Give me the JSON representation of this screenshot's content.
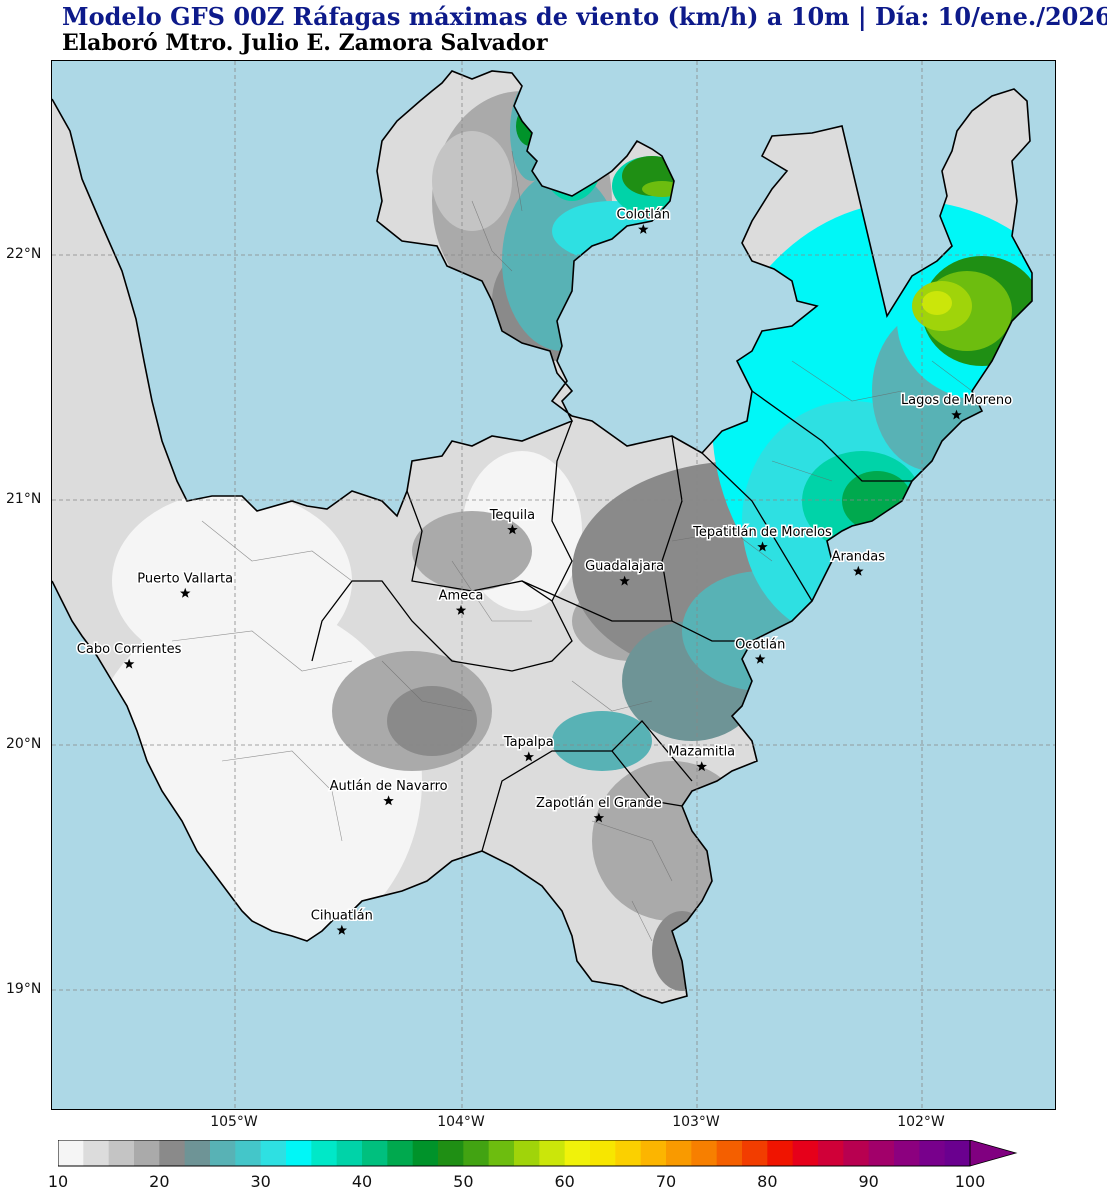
{
  "header": {
    "title": "Modelo GFS 00Z Ráfagas máximas de viento (km/h) a 10m | Día: 10/ene./2026",
    "author": "Elaboró Mtro. Julio E. Zamora Salvador"
  },
  "map": {
    "projection": "PlateCarree",
    "lon_range": [
      -105.8,
      -101.5
    ],
    "lat_range": [
      18.5,
      22.8
    ],
    "gridlines": true,
    "ocean_color": "#add8e6",
    "latitude_labels": [
      "22°N",
      "21°N",
      "20°N",
      "19°N"
    ],
    "longitude_labels": [
      "105°W",
      "104°W",
      "103°W",
      "102°W"
    ],
    "cities": [
      {
        "name": "Colotlán",
        "lon": -103.27,
        "lat": 22.11
      },
      {
        "name": "Lagos de Moreno",
        "lon": -101.93,
        "lat": 21.35
      },
      {
        "name": "Tequila",
        "lon": -103.83,
        "lat": 20.88
      },
      {
        "name": "Tepatitlán de Morelos",
        "lon": -102.76,
        "lat": 20.81
      },
      {
        "name": "Arandas",
        "lon": -102.35,
        "lat": 20.71
      },
      {
        "name": "Puerto Vallarta",
        "lon": -105.23,
        "lat": 20.62
      },
      {
        "name": "Guadalajara",
        "lon": -103.35,
        "lat": 20.67
      },
      {
        "name": "Ameca",
        "lon": -104.05,
        "lat": 20.55
      },
      {
        "name": "Ocotlán",
        "lon": -102.77,
        "lat": 20.35
      },
      {
        "name": "Cabo Corrientes",
        "lon": -105.47,
        "lat": 20.33
      },
      {
        "name": "Tapalpa",
        "lon": -103.76,
        "lat": 19.95
      },
      {
        "name": "Mazamitla",
        "lon": -103.02,
        "lat": 19.91
      },
      {
        "name": "Autlán de Navarro",
        "lon": -104.36,
        "lat": 19.77
      },
      {
        "name": "Zapotlán el Grande",
        "lon": -103.46,
        "lat": 19.7
      },
      {
        "name": "Cihuatlán",
        "lon": -104.56,
        "lat": 19.24
      }
    ]
  },
  "colorbar": {
    "label_ticks": [
      "10",
      "20",
      "30",
      "40",
      "50",
      "60",
      "70",
      "80",
      "90",
      "100"
    ],
    "min": 10,
    "max": 100,
    "step": 2.5,
    "extend": "max",
    "colors": [
      "#f5f5f5",
      "#dcdcdc",
      "#c4c4c4",
      "#aaaaaa",
      "#8a8a8a",
      "#6e9496",
      "#58b2b5",
      "#44c6c9",
      "#2ee0e2",
      "#00f7f7",
      "#00e8c8",
      "#00d3a8",
      "#00c07e",
      "#00a94e",
      "#00932a",
      "#1f8f14",
      "#42a312",
      "#6dbd0f",
      "#a0d40a",
      "#cbe60a",
      "#f0f20a",
      "#f7e600",
      "#fbd000",
      "#fcb500",
      "#f99a00",
      "#f77f00",
      "#f45f00",
      "#f23d00",
      "#f01400",
      "#e6001a",
      "#d00038",
      "#b80050",
      "#a2006a",
      "#8c007f",
      "#78008c",
      "#6a008f"
    ]
  }
}
